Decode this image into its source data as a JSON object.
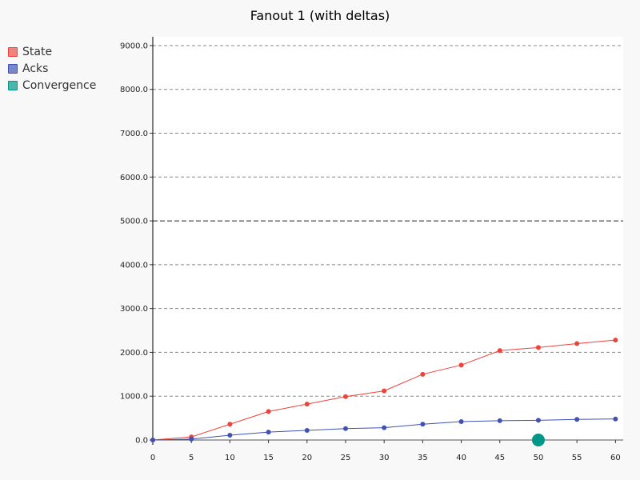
{
  "chart_data": {
    "type": "line",
    "title": "Fanout 1 (with deltas)",
    "xlabel": "",
    "ylabel": "",
    "x": [
      0,
      5,
      10,
      15,
      20,
      25,
      30,
      35,
      40,
      45,
      50,
      55,
      60
    ],
    "xlim": [
      0,
      61
    ],
    "ylim": [
      0,
      9200
    ],
    "y_ticks": [
      0,
      1000,
      2000,
      3000,
      4000,
      5000,
      6000,
      7000,
      8000,
      9000
    ],
    "y_tick_labels": [
      "0.0",
      "1000.0",
      "2000.0",
      "3000.0",
      "4000.0",
      "5000.0",
      "6000.0",
      "7000.0",
      "8000.0",
      "9000.0"
    ],
    "x_tick_labels": [
      "0",
      "5",
      "10",
      "15",
      "20",
      "25",
      "30",
      "35",
      "40",
      "45",
      "50",
      "55",
      "60"
    ],
    "grid": true,
    "legend_position": "top-left",
    "series": [
      {
        "name": "State",
        "color": "#f0413a",
        "values": [
          0,
          70,
          360,
          650,
          820,
          990,
          1120,
          1500,
          1710,
          2040,
          2110,
          2200,
          2280
        ]
      },
      {
        "name": "Acks",
        "color": "#3f51b5",
        "values": [
          0,
          20,
          110,
          180,
          220,
          260,
          280,
          360,
          420,
          440,
          450,
          470,
          480
        ]
      }
    ],
    "markers": [
      {
        "name": "Convergence",
        "color": "#009688",
        "x": 50,
        "y": 0
      }
    ]
  },
  "legend": [
    {
      "label": "State",
      "color": "#f0413a",
      "fill": "#f2827c"
    },
    {
      "label": "Acks",
      "color": "#3f51b5",
      "fill": "#7986cb"
    },
    {
      "label": "Convergence",
      "color": "#009688",
      "fill": "#4db6ac"
    }
  ]
}
